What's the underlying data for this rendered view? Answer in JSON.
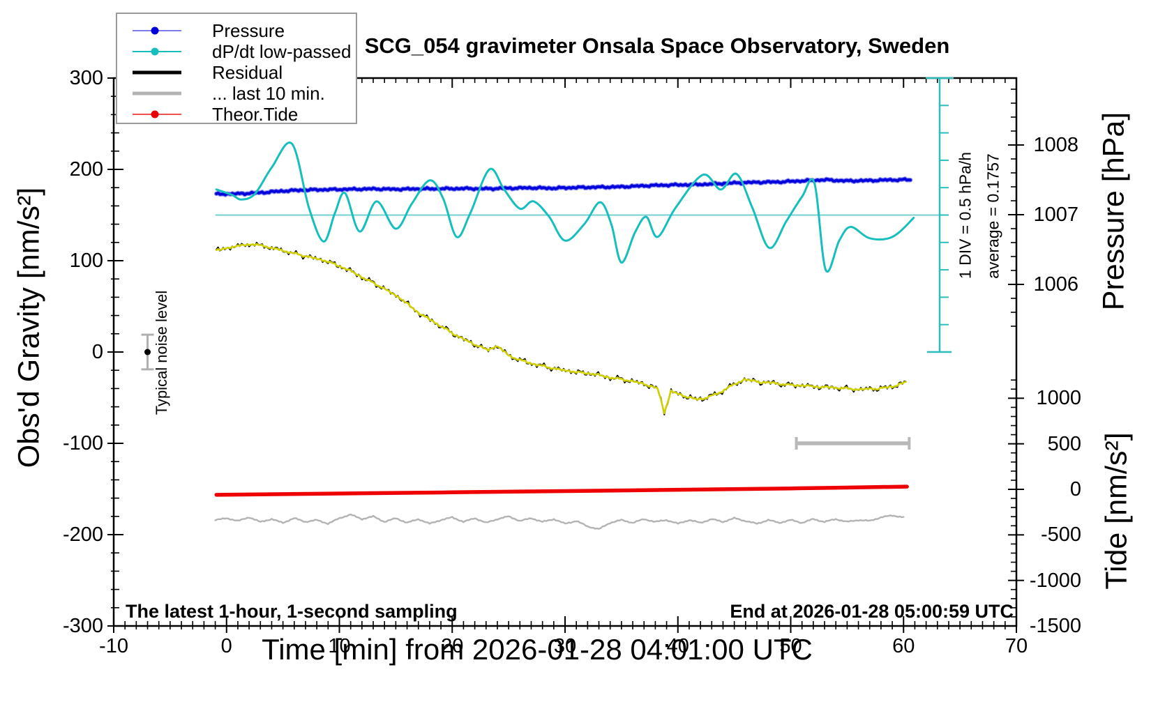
{
  "title": "SCG_054 gravimeter Onsala Space Observatory, Sweden",
  "notes": {
    "sampling": "The latest 1-hour, 1-second sampling",
    "end_time": "End at 2026-01-28 05:00:59 UTC"
  },
  "annotation_texts": {
    "noise": "Typical noise level",
    "div_scale": "1 DIV = 0.5 hPa/h",
    "average": "average = 0.1757"
  },
  "legend": {
    "items": [
      {
        "label": "Pressure",
        "line_color": "#7b7bec",
        "marker_color": "#0000dd",
        "width": 2,
        "marker": true
      },
      {
        "label": "dP/dt low-passed",
        "line_color": "#17bebe",
        "marker_color": "#17bebe",
        "width": 2,
        "marker": true
      },
      {
        "label": "Residual",
        "line_color": "#000000",
        "marker_color": "#000000",
        "width": 5,
        "marker": false
      },
      {
        "label": "... last 10 min.",
        "line_color": "#b3b3b3",
        "marker_color": "#b3b3b3",
        "width": 5,
        "marker": false
      },
      {
        "label": "Theor.Tide",
        "line_color": "#f05050",
        "marker_color": "#ee0000",
        "width": 2,
        "marker": true
      }
    ]
  },
  "chart_data": {
    "type": "line",
    "title": "SCG_054 gravimeter Onsala Space Observatory, Sweden",
    "x_axis": {
      "label": "Time [min] from 2026-01-28 04:01:00 UTC",
      "min": -10,
      "max": 70,
      "major_ticks": [
        -10,
        0,
        10,
        20,
        30,
        40,
        50,
        60,
        70
      ],
      "minor_step": 1
    },
    "gravity_axis": {
      "label": "Obs'd Gravity [nm/s²]",
      "min": -300,
      "max": 300,
      "major_ticks": [
        300,
        200,
        100,
        0,
        -100,
        -200,
        -300
      ],
      "minor_step": 20
    },
    "pressure_axis": {
      "label": "Pressure [hPa]",
      "major_ticks": [
        1008,
        1007,
        1006
      ],
      "minor_step": 0.2
    },
    "tide_axis": {
      "label": "Tide [nm/s²]",
      "major_ticks": [
        1000,
        500,
        0,
        -500,
        -1000,
        -1500
      ],
      "minor_step": 100
    },
    "series": [
      {
        "name": "Pressure",
        "axis": "pressure",
        "style": "noisy",
        "color": "#0202dd",
        "halo_color": "#8c8cf0",
        "points": [
          [
            -0.9,
            1007.295
          ],
          [
            1,
            1007.3
          ],
          [
            3,
            1007.315
          ],
          [
            5,
            1007.34
          ],
          [
            7,
            1007.355
          ],
          [
            9,
            1007.36
          ],
          [
            11,
            1007.365
          ],
          [
            13,
            1007.37
          ],
          [
            15,
            1007.365
          ],
          [
            17,
            1007.37
          ],
          [
            19,
            1007.372
          ],
          [
            21,
            1007.375
          ],
          [
            23,
            1007.372
          ],
          [
            25,
            1007.38
          ],
          [
            27,
            1007.385
          ],
          [
            29,
            1007.38
          ],
          [
            31,
            1007.39
          ],
          [
            33,
            1007.395
          ],
          [
            35,
            1007.4
          ],
          [
            37,
            1007.415
          ],
          [
            39,
            1007.425
          ],
          [
            41,
            1007.43
          ],
          [
            43,
            1007.44
          ],
          [
            45,
            1007.455
          ],
          [
            47,
            1007.465
          ],
          [
            49,
            1007.47
          ],
          [
            51,
            1007.485
          ],
          [
            53,
            1007.5
          ],
          [
            55,
            1007.485
          ],
          [
            57,
            1007.49
          ],
          [
            59,
            1007.5
          ],
          [
            60.6,
            1007.5
          ]
        ]
      },
      {
        "name": "dP/dt low-passed",
        "axis": "gravity",
        "style": "smooth",
        "color": "#17bebe",
        "mean_line": {
          "value": 150,
          "from_t": -1,
          "to_t": 63.2,
          "color": "#76cfcf"
        },
        "points": [
          [
            -0.9,
            178
          ],
          [
            0.5,
            172
          ],
          [
            1.3,
            167
          ],
          [
            2.5,
            173
          ],
          [
            4,
            202
          ],
          [
            5.8,
            228
          ],
          [
            7.3,
            158
          ],
          [
            8.6,
            121
          ],
          [
            9.6,
            152
          ],
          [
            10.5,
            174
          ],
          [
            11.8,
            132
          ],
          [
            13.3,
            165
          ],
          [
            15,
            135
          ],
          [
            16.4,
            162
          ],
          [
            18,
            188
          ],
          [
            19.2,
            168
          ],
          [
            20.4,
            126
          ],
          [
            21.6,
            152
          ],
          [
            23.3,
            200
          ],
          [
            24.6,
            178
          ],
          [
            26,
            157
          ],
          [
            27.2,
            165
          ],
          [
            28.6,
            148
          ],
          [
            30,
            122
          ],
          [
            31.7,
            140
          ],
          [
            33.1,
            164
          ],
          [
            34.1,
            140
          ],
          [
            35,
            98
          ],
          [
            36.2,
            131
          ],
          [
            37.2,
            148
          ],
          [
            38.2,
            126
          ],
          [
            39.8,
            158
          ],
          [
            42.2,
            194
          ],
          [
            43.8,
            178
          ],
          [
            45.2,
            195
          ],
          [
            46.6,
            158
          ],
          [
            48.1,
            114
          ],
          [
            49.6,
            143
          ],
          [
            51,
            170
          ],
          [
            52.1,
            185
          ],
          [
            53.1,
            90
          ],
          [
            54.3,
            122
          ],
          [
            55.3,
            137
          ],
          [
            56.9,
            125
          ],
          [
            58.5,
            124
          ],
          [
            59.6,
            131
          ],
          [
            60.9,
            147
          ]
        ]
      },
      {
        "name": "Residual",
        "axis": "gravity",
        "style": "noisy-duo",
        "color": "#000000",
        "core_color": "#d0d000",
        "points": [
          [
            -0.9,
            111
          ],
          [
            0,
            114
          ],
          [
            1,
            116
          ],
          [
            2,
            118
          ],
          [
            3,
            117
          ],
          [
            4,
            114
          ],
          [
            5,
            111
          ],
          [
            6,
            108
          ],
          [
            7.7,
            103
          ],
          [
            9,
            99
          ],
          [
            10.8,
            90
          ],
          [
            12,
            82
          ],
          [
            13.9,
            70
          ],
          [
            15.5,
            58
          ],
          [
            17,
            43
          ],
          [
            18.5,
            32
          ],
          [
            20.1,
            20
          ],
          [
            21.5,
            11
          ],
          [
            23.2,
            2
          ],
          [
            24,
            7
          ],
          [
            25,
            -4
          ],
          [
            26.3,
            -10
          ],
          [
            27.5,
            -14
          ],
          [
            29.4,
            -19
          ],
          [
            31,
            -22
          ],
          [
            32.5,
            -24
          ],
          [
            34,
            -28
          ],
          [
            35.6,
            -31
          ],
          [
            37,
            -35
          ],
          [
            38.2,
            -40
          ],
          [
            38.8,
            -66
          ],
          [
            39.4,
            -43
          ],
          [
            40.5,
            -48
          ],
          [
            41.7,
            -52
          ],
          [
            42.6,
            -50
          ],
          [
            43.6,
            -45
          ],
          [
            44.6,
            -38
          ],
          [
            45.9,
            -30
          ],
          [
            47.3,
            -33
          ],
          [
            48.5,
            -34
          ],
          [
            49.8,
            -36
          ],
          [
            51.5,
            -37
          ],
          [
            52.2,
            -38
          ],
          [
            54,
            -39
          ],
          [
            55.9,
            -41
          ],
          [
            57.8,
            -40
          ],
          [
            59,
            -38
          ],
          [
            60.2,
            -33
          ]
        ]
      },
      {
        "name": "... last 10 min.",
        "axis": "gravity",
        "style": "noisy",
        "color": "#b3b3b3",
        "points": [
          [
            -1,
            -184
          ],
          [
            0,
            -182
          ],
          [
            1,
            -185
          ],
          [
            2,
            -181
          ],
          [
            3,
            -186
          ],
          [
            4,
            -183
          ],
          [
            5,
            -187
          ],
          [
            6,
            -182
          ],
          [
            7,
            -186
          ],
          [
            8,
            -184
          ],
          [
            9,
            -188
          ],
          [
            10,
            -182
          ],
          [
            11,
            -178
          ],
          [
            12,
            -183
          ],
          [
            13,
            -180
          ],
          [
            14,
            -186
          ],
          [
            15,
            -182
          ],
          [
            16,
            -187
          ],
          [
            17,
            -183
          ],
          [
            18,
            -188
          ],
          [
            19,
            -184
          ],
          [
            20,
            -181
          ],
          [
            21,
            -186
          ],
          [
            22,
            -182
          ],
          [
            23,
            -187
          ],
          [
            24,
            -183
          ],
          [
            25,
            -180
          ],
          [
            26,
            -185
          ],
          [
            27,
            -182
          ],
          [
            28,
            -186
          ],
          [
            29,
            -183
          ],
          [
            30,
            -188
          ],
          [
            31,
            -185
          ],
          [
            32,
            -191
          ],
          [
            33,
            -194
          ],
          [
            34,
            -187
          ],
          [
            35,
            -184
          ],
          [
            36,
            -187
          ],
          [
            37,
            -183
          ],
          [
            38,
            -186
          ],
          [
            39,
            -184
          ],
          [
            40,
            -188
          ],
          [
            41,
            -184
          ],
          [
            42,
            -187
          ],
          [
            43,
            -183
          ],
          [
            44,
            -186
          ],
          [
            45,
            -182
          ],
          [
            46,
            -185
          ],
          [
            47,
            -188
          ],
          [
            48,
            -184
          ],
          [
            49,
            -187
          ],
          [
            50,
            -184
          ],
          [
            51,
            -187
          ],
          [
            52,
            -183
          ],
          [
            53,
            -186
          ],
          [
            54,
            -183
          ],
          [
            55,
            -186
          ],
          [
            56,
            -184
          ],
          [
            57,
            -185
          ],
          [
            58,
            -181
          ],
          [
            59,
            -179
          ],
          [
            60,
            -181
          ]
        ]
      },
      {
        "name": "Theor.Tide",
        "axis": "tide",
        "style": "plain",
        "color": "#ee0000",
        "points": [
          [
            -0.9,
            -60
          ],
          [
            10,
            -46
          ],
          [
            20,
            -33
          ],
          [
            30,
            -19
          ],
          [
            40,
            -5
          ],
          [
            50,
            10
          ],
          [
            60.3,
            30
          ]
        ]
      }
    ],
    "annotations": {
      "noise_marker": {
        "t": -7,
        "gravity": 0,
        "error_gravity": 19
      },
      "dpdt_scale_bar": {
        "t": 63.2,
        "top_gravity": 300,
        "bottom_gravity": 0,
        "divisions": 10,
        "color": "#2cbcbc"
      },
      "last10_bar": {
        "from_t": 50.5,
        "to_t": 60.5,
        "gravity": -100,
        "color": "#b8b8b8"
      }
    }
  }
}
